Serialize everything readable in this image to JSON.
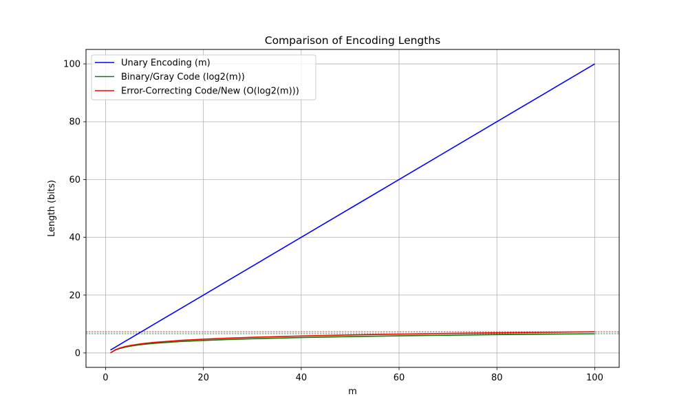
{
  "chart_data": {
    "type": "line",
    "title": "Comparison of Encoding Lengths",
    "xlabel": "m",
    "ylabel": "Length (bits)",
    "xlim": [
      -4.0,
      105.0
    ],
    "ylim": [
      -5.0,
      105.0
    ],
    "xticks": [
      0,
      20,
      40,
      60,
      80,
      100
    ],
    "yticks": [
      0,
      20,
      40,
      60,
      80,
      100
    ],
    "grid": true,
    "legend_position": "top-left",
    "x": [
      1,
      2,
      3,
      4,
      5,
      6,
      7,
      8,
      9,
      10,
      15,
      20,
      25,
      30,
      40,
      50,
      60,
      70,
      80,
      90,
      100
    ],
    "series": [
      {
        "name": "Unary Encoding (m)",
        "color": "#0000ff",
        "values": [
          1,
          2,
          3,
          4,
          5,
          6,
          7,
          8,
          9,
          10,
          15,
          20,
          25,
          30,
          40,
          50,
          60,
          70,
          80,
          90,
          100
        ]
      },
      {
        "name": "Binary/Gray Code (log2(m))",
        "color": "#008000",
        "values": [
          0.0,
          1.0,
          1.58,
          2.0,
          2.32,
          2.58,
          2.81,
          3.0,
          3.17,
          3.32,
          3.91,
          4.32,
          4.64,
          4.91,
          5.32,
          5.64,
          5.91,
          6.13,
          6.32,
          6.49,
          6.64
        ]
      },
      {
        "name": "Error-Correcting Code/New (O(log2(m)))",
        "color": "#ff0000",
        "values": [
          0.0,
          1.1,
          1.74,
          2.2,
          2.55,
          2.84,
          3.09,
          3.3,
          3.49,
          3.65,
          4.3,
          4.75,
          5.11,
          5.4,
          5.85,
          6.21,
          6.5,
          6.74,
          6.95,
          7.14,
          7.31
        ]
      }
    ],
    "reference_lines": [
      {
        "y": 6.64,
        "color": "#008000",
        "style": "dashed"
      },
      {
        "y": 7.31,
        "color": "#ff0000",
        "style": "dashed"
      }
    ]
  }
}
